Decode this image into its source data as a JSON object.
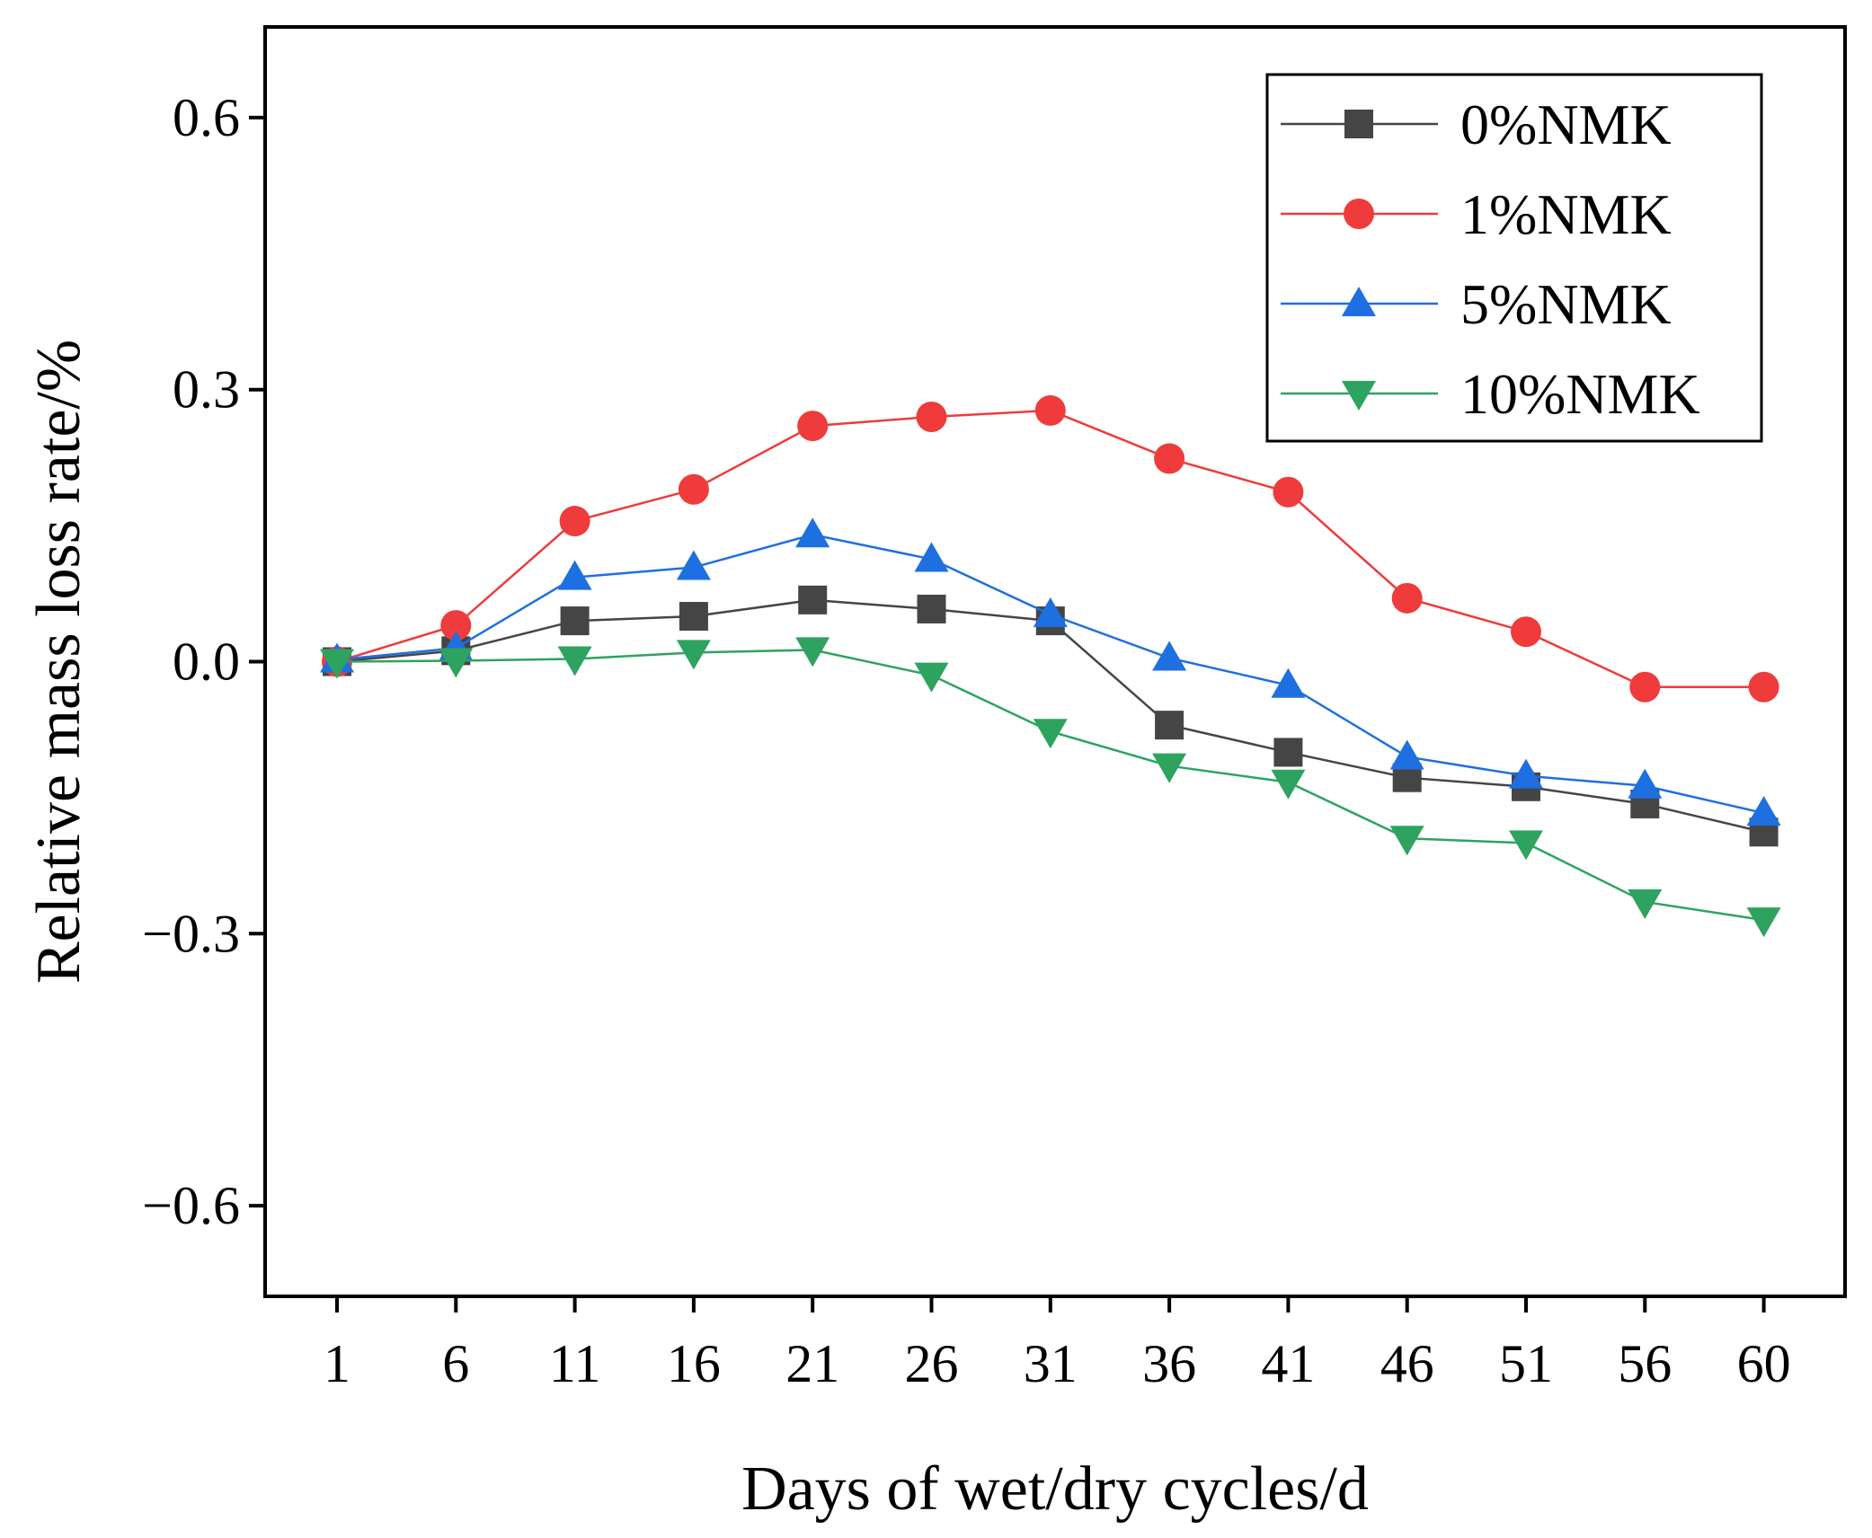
{
  "chart_data": {
    "type": "line",
    "xlabel": "Days of wet/dry cycles/d",
    "ylabel": "Relative mass loss rate/%",
    "categories": [
      "1",
      "6",
      "11",
      "16",
      "21",
      "26",
      "31",
      "36",
      "41",
      "46",
      "51",
      "56",
      "60"
    ],
    "ylim": [
      -0.7,
      0.7
    ],
    "yticks": [
      -0.6,
      -0.3,
      0.0,
      0.3,
      0.6
    ],
    "ytick_labels": [
      "−0.6",
      "−0.3",
      "0.0",
      "0.3",
      "0.6"
    ],
    "grid": false,
    "legend_position": "top-right",
    "series": [
      {
        "name": "0%NMK",
        "color": "#454545",
        "marker": "square",
        "values": [
          0.0,
          0.012,
          0.045,
          0.05,
          0.068,
          0.058,
          0.045,
          -0.07,
          -0.1,
          -0.128,
          -0.138,
          -0.157,
          -0.188
        ]
      },
      {
        "name": "1%NMK",
        "color": "#ef3b3b",
        "marker": "circle",
        "values": [
          0.0,
          0.04,
          0.155,
          0.19,
          0.26,
          0.27,
          0.277,
          0.224,
          0.187,
          0.07,
          0.033,
          -0.028,
          -0.028
        ]
      },
      {
        "name": "5%NMK",
        "color": "#1e6fe0",
        "marker": "triangle-up",
        "values": [
          0.002,
          0.015,
          0.093,
          0.104,
          0.14,
          0.113,
          0.052,
          0.004,
          -0.026,
          -0.105,
          -0.126,
          -0.137,
          -0.167
        ]
      },
      {
        "name": "10%NMK",
        "color": "#2ea35f",
        "marker": "triangle-down",
        "values": [
          0.0,
          0.001,
          0.003,
          0.01,
          0.013,
          -0.015,
          -0.077,
          -0.115,
          -0.133,
          -0.195,
          -0.2,
          -0.265,
          -0.285
        ]
      }
    ]
  }
}
